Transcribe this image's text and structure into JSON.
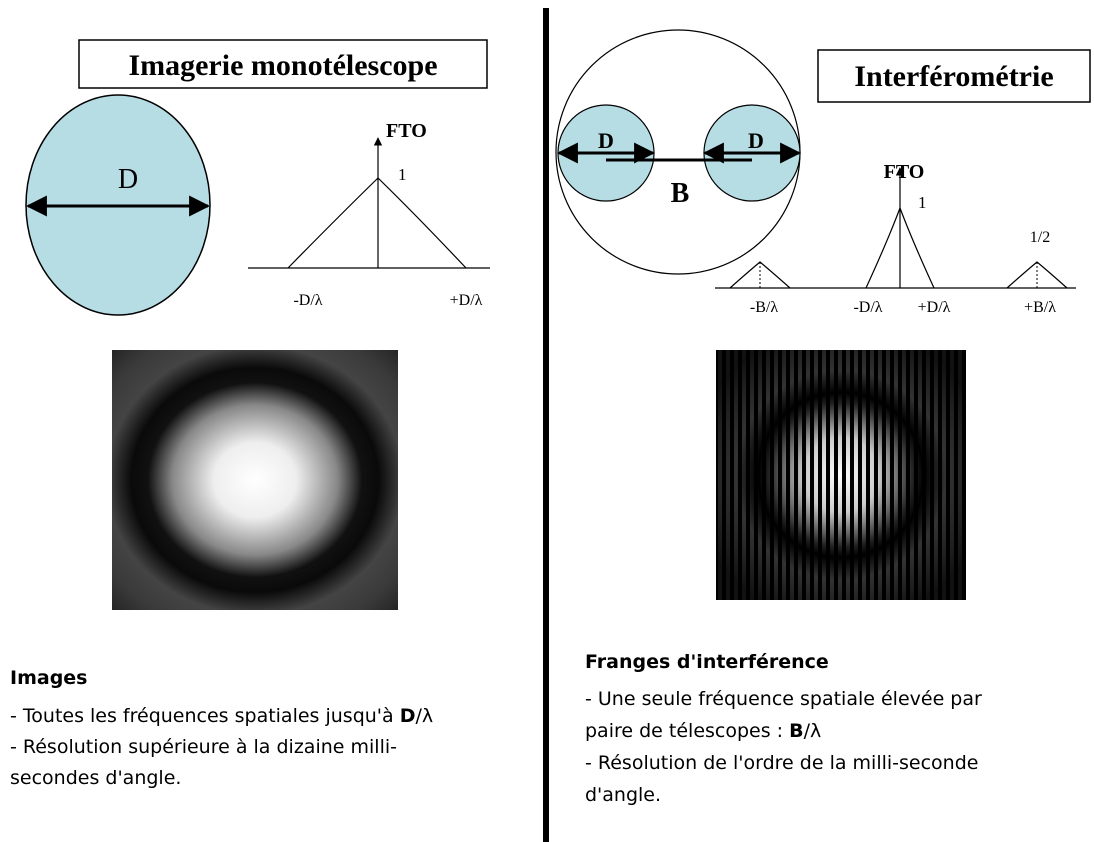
{
  "left": {
    "title": "Imagerie monotélescope",
    "aperture_label": "D",
    "plot": {
      "axis_label": "FTO",
      "peak_label": "1",
      "minus": "-D/λ",
      "plus": "+D/λ"
    },
    "heading": "Images",
    "lines": [
      {
        "text": "- Toutes les fréquences spatiales jusqu'à ",
        "bold": "D",
        "after": "/λ"
      },
      {
        "text": "- Résolution supérieure à la dizaine milli-"
      },
      {
        "text": "secondes d'angle."
      }
    ]
  },
  "right": {
    "title": "Interférométrie",
    "aperture_labels": [
      "D",
      "D"
    ],
    "baseline_label": "B",
    "plot": {
      "axis_label": "FTO",
      "peak_label": "1",
      "side_label": "1/2",
      "minus_b": "-B/λ",
      "minus_d": "-D/λ",
      "plus_d": "+D/λ",
      "plus_b": "+B/λ"
    },
    "heading": "Franges d'interférence",
    "lines": [
      {
        "text": "- Une seule fréquence spatiale élevée par"
      },
      {
        "text": "paire de télescopes : ",
        "bold": "B",
        "after": "/λ"
      },
      {
        "text": "- Résolution de l'ordre de la milli-seconde"
      },
      {
        "text": "d'angle."
      }
    ]
  }
}
